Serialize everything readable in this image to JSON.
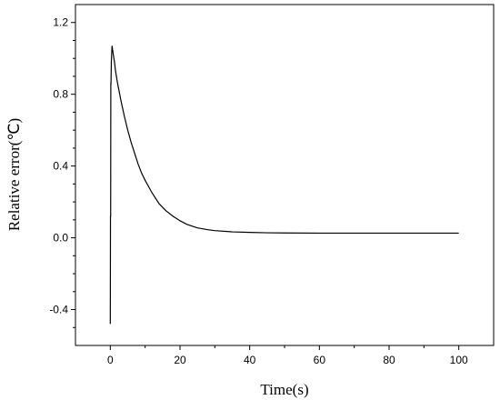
{
  "chart_data": {
    "type": "line",
    "title": "",
    "xlabel": "Time(s)",
    "ylabel": "Relative error(℃)",
    "xlim": [
      -10,
      110
    ],
    "ylim": [
      -0.6,
      1.3
    ],
    "xticks": [
      0,
      20,
      40,
      60,
      80,
      100
    ],
    "yticks": [
      -0.4,
      0.0,
      0.4,
      0.8,
      1.2
    ],
    "xtick_labels": [
      "0",
      "20",
      "40",
      "60",
      "80",
      "100"
    ],
    "ytick_labels": [
      "-0.4",
      "0.0",
      "0.4",
      "0.8",
      "1.2"
    ],
    "grid": false,
    "line_color": "#000000",
    "series": [
      {
        "x": [
          0,
          0.05,
          0.1,
          0.15,
          0.2,
          0.3,
          0.5,
          0.8,
          1.2,
          1.5,
          2,
          3,
          4,
          5,
          6,
          7,
          8,
          9,
          10,
          12,
          14,
          16,
          18,
          20,
          22,
          25,
          28,
          30,
          35,
          40,
          45,
          50,
          60,
          70,
          80,
          90,
          100
        ],
        "y": [
          -0.48,
          0.12,
          0.12,
          0.86,
          0.86,
          0.98,
          1.07,
          1.03,
          0.98,
          0.93,
          0.87,
          0.77,
          0.68,
          0.6,
          0.53,
          0.47,
          0.41,
          0.36,
          0.32,
          0.25,
          0.19,
          0.15,
          0.12,
          0.095,
          0.075,
          0.055,
          0.045,
          0.04,
          0.033,
          0.03,
          0.028,
          0.027,
          0.026,
          0.026,
          0.026,
          0.026,
          0.026
        ]
      }
    ]
  }
}
